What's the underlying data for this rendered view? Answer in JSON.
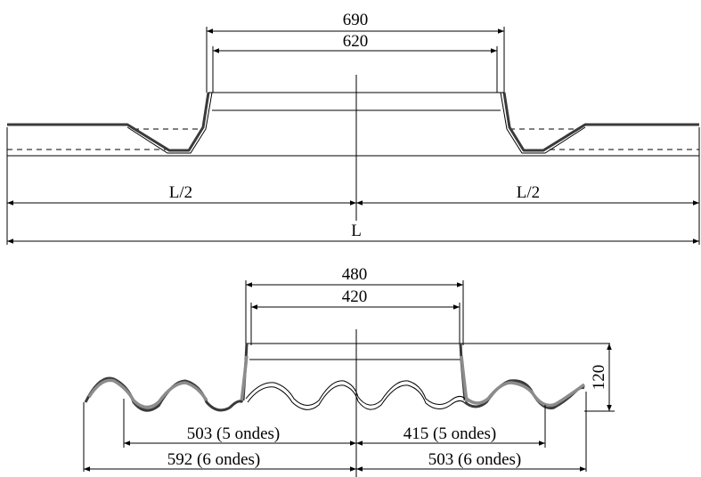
{
  "top_drawing": {
    "outer_width": "690",
    "inner_width": "620",
    "half_left": "L/2",
    "half_right": "L/2",
    "total": "L"
  },
  "bottom_drawing": {
    "outer_width": "480",
    "inner_width": "420",
    "height": "120",
    "left_upper": "503 (5 ondes)",
    "right_upper": "415 (5 ondes)",
    "left_lower": "592 (6 ondes)",
    "right_lower": "503 (6 ondes)"
  },
  "colors": {
    "line": "#000000",
    "profile": "#3a3a3a",
    "highlight": "#8c8c8c"
  }
}
